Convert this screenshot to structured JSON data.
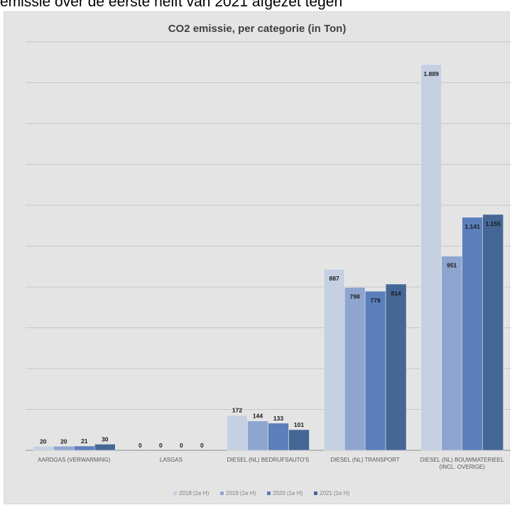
{
  "caption": "emissie over de eerste helft van 2021 afgezet tegen",
  "chart_data": {
    "type": "bar",
    "title": "CO2 emissie, per categorie (in Ton)",
    "categories": [
      [
        "AARDGAS (VERWARMING)"
      ],
      [
        "LASGAS"
      ],
      [
        "DIESEL (NL) BEDRIJFSAUTO'S"
      ],
      [
        "DIESEL (NL) TRANSPORT"
      ],
      [
        "DIESEL (NL) BOUWMATERIEEL",
        "(INCL. OVERIGE)"
      ]
    ],
    "series": [
      {
        "name": "2018 (1e H)",
        "color": "#c5d0e2",
        "values": [
          20,
          0,
          172,
          887,
          1889
        ],
        "labels": [
          "20",
          "0",
          "172",
          "887",
          "1.889"
        ]
      },
      {
        "name": "2019 (1e H)",
        "color": "#8ea5cf",
        "values": [
          20,
          0,
          144,
          798,
          951
        ],
        "labels": [
          "20",
          "0",
          "144",
          "798",
          "951"
        ]
      },
      {
        "name": "2020 (1e H)",
        "color": "#5b7fbb",
        "values": [
          21,
          0,
          133,
          779,
          1141
        ],
        "labels": [
          "21",
          "0",
          "133",
          "779",
          "1.141"
        ]
      },
      {
        "name": "2021 (1e H)",
        "color": "#456796",
        "values": [
          30,
          0,
          101,
          814,
          1155
        ],
        "labels": [
          "30",
          "0",
          "101",
          "814",
          "1.155"
        ]
      }
    ],
    "ylim": [
      0,
      2000
    ],
    "grid": true,
    "y_tick_labels_shown": false,
    "legend_position": "bottom"
  }
}
